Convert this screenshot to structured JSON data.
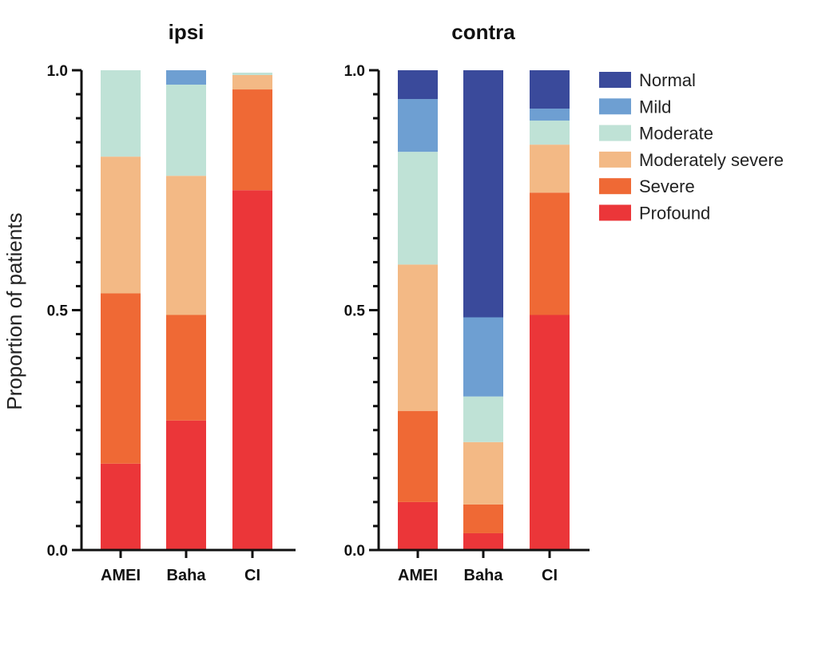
{
  "chart_data": [
    {
      "type": "bar",
      "stacked": true,
      "title": "ipsi",
      "ylabel": "Proportion of patients",
      "ylim": [
        0,
        1
      ],
      "yticks": [
        0.0,
        0.5,
        1.0
      ],
      "ytick_labels": [
        "0.0",
        "0.5",
        "1.0"
      ],
      "categories": [
        "AMEI",
        "Baha",
        "CI"
      ],
      "series": [
        {
          "name": "Profound",
          "values": [
            0.18,
            0.27,
            0.75
          ]
        },
        {
          "name": "Severe",
          "values": [
            0.355,
            0.22,
            0.21
          ]
        },
        {
          "name": "Moderately severe",
          "values": [
            0.285,
            0.29,
            0.03
          ]
        },
        {
          "name": "Moderate",
          "values": [
            0.18,
            0.19,
            0.005
          ]
        },
        {
          "name": "Mild",
          "values": [
            0.0,
            0.03,
            0.0
          ]
        },
        {
          "name": "Normal",
          "values": [
            0.0,
            0.0,
            0.0
          ]
        }
      ]
    },
    {
      "type": "bar",
      "stacked": true,
      "title": "contra",
      "ylim": [
        0,
        1
      ],
      "yticks": [
        0.0,
        0.5,
        1.0
      ],
      "ytick_labels": [
        "0.0",
        "0.5",
        "1.0"
      ],
      "categories": [
        "AMEI",
        "Baha",
        "CI"
      ],
      "series": [
        {
          "name": "Profound",
          "values": [
            0.1,
            0.035,
            0.49
          ]
        },
        {
          "name": "Severe",
          "values": [
            0.19,
            0.06,
            0.255
          ]
        },
        {
          "name": "Moderately severe",
          "values": [
            0.305,
            0.13,
            0.1
          ]
        },
        {
          "name": "Moderate",
          "values": [
            0.235,
            0.095,
            0.05
          ]
        },
        {
          "name": "Mild",
          "values": [
            0.11,
            0.165,
            0.025
          ]
        },
        {
          "name": "Normal",
          "values": [
            0.06,
            0.515,
            0.08
          ]
        }
      ]
    }
  ],
  "legend": {
    "placement": "right",
    "items": [
      {
        "name": "Normal",
        "color": "#3a4a9b"
      },
      {
        "name": "Mild",
        "color": "#6e9fd2"
      },
      {
        "name": "Moderate",
        "color": "#bfe2d6"
      },
      {
        "name": "Moderately severe",
        "color": "#f3b985"
      },
      {
        "name": "Severe",
        "color": "#ef6935"
      },
      {
        "name": "Profound",
        "color": "#eb3639"
      }
    ]
  },
  "colors": {
    "Normal": "#3a4a9b",
    "Mild": "#6e9fd2",
    "Moderate": "#bfe2d6",
    "Moderately severe": "#f3b985",
    "Severe": "#ef6935",
    "Profound": "#eb3639"
  },
  "grid": false
}
